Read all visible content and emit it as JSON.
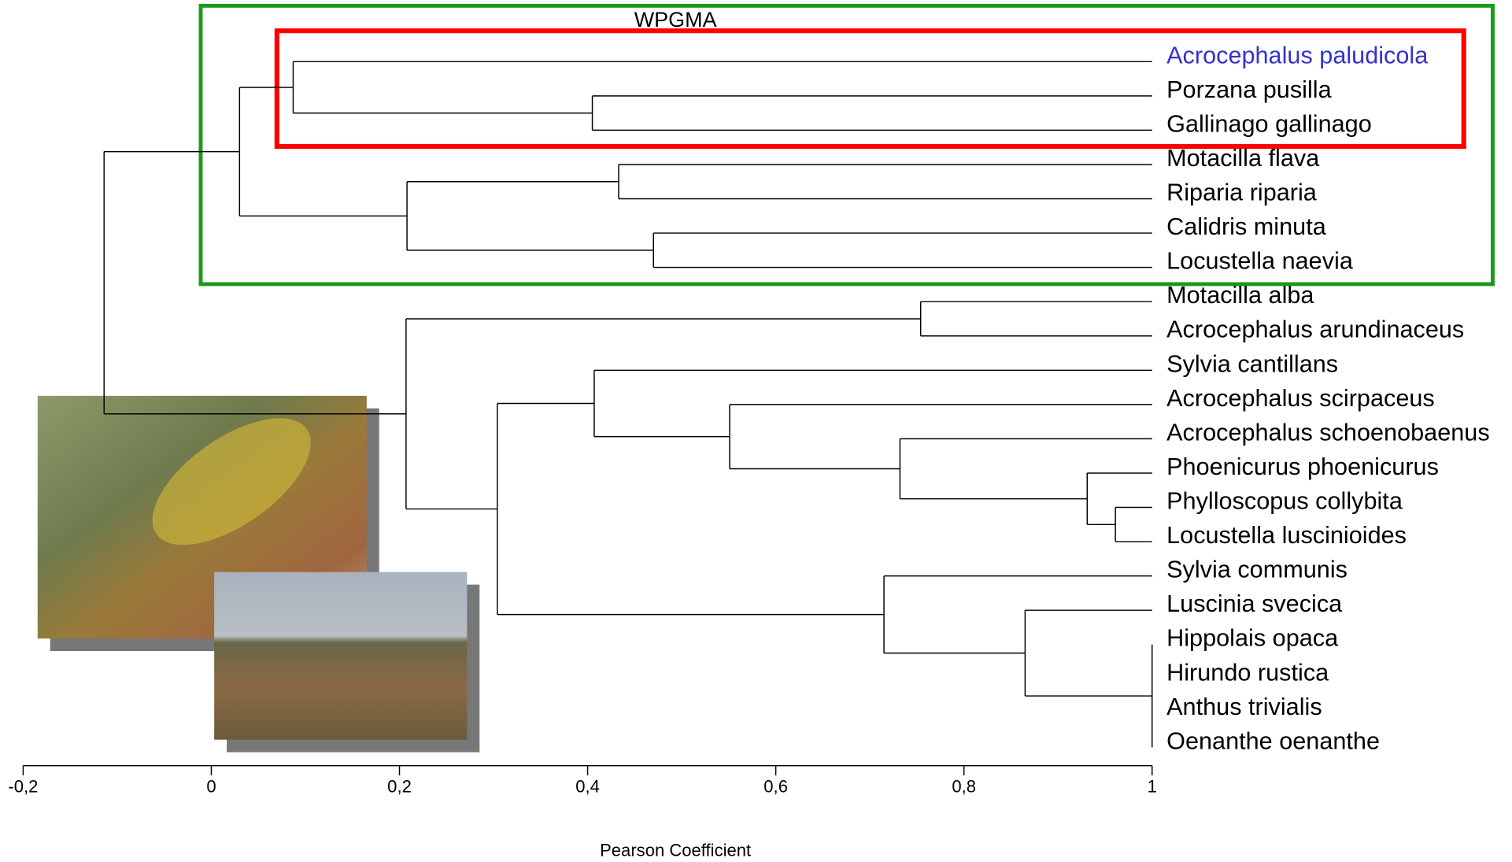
{
  "chart_data": {
    "type": "dendrogram",
    "title": "WPGMA",
    "xlabel": "Pearson Coefficient",
    "xlim": [
      -0.2,
      1
    ],
    "xticks": [
      {
        "value": -0.2,
        "label": "-0,2"
      },
      0,
      {
        "value": 0.2,
        "label": "0,2"
      },
      {
        "value": 0.4,
        "label": "0,4"
      },
      {
        "value": 0.6,
        "label": "0,6"
      },
      {
        "value": 0.8,
        "label": "0,8"
      },
      1
    ],
    "tree": {
      "height": -0.114,
      "children": [
        {
          "height": 0.03,
          "children": [
            {
              "height": 0.087,
              "children": [
                {
                  "label": "Acrocephalus paludicola",
                  "color": "#3333cc"
                },
                {
                  "height": 0.405,
                  "children": [
                    {
                      "label": "Porzana pusilla"
                    },
                    {
                      "label": "Gallinago gallinago"
                    }
                  ]
                }
              ]
            },
            {
              "height": 0.208,
              "children": [
                {
                  "height": 0.433,
                  "children": [
                    {
                      "label": "Motacilla flava"
                    },
                    {
                      "label": "Riparia riparia"
                    }
                  ]
                },
                {
                  "height": 0.47,
                  "children": [
                    {
                      "label": "Calidris minuta"
                    },
                    {
                      "label": "Locustella naevia"
                    }
                  ]
                }
              ]
            }
          ]
        },
        {
          "height": 0.207,
          "children": [
            {
              "height": 0.754,
              "children": [
                {
                  "label": "Motacilla alba"
                },
                {
                  "label": "Acrocephalus arundinaceus"
                }
              ]
            },
            {
              "height": 0.304,
              "children": [
                {
                  "height": 0.407,
                  "children": [
                    {
                      "label": "Sylvia cantillans"
                    },
                    {
                      "height": 0.551,
                      "children": [
                        {
                          "label": "Acrocephalus scirpaceus"
                        },
                        {
                          "height": 0.732,
                          "children": [
                            {
                              "label": "Acrocephalus schoenobaenus"
                            },
                            {
                              "height": 0.931,
                              "children": [
                                {
                                  "label": "Phoenicurus phoenicurus"
                                },
                                {
                                  "height": 0.961,
                                  "children": [
                                    {
                                      "label": "Phylloscopus collybita"
                                    },
                                    {
                                      "label": "Locustella luscinioides"
                                    }
                                  ]
                                }
                              ]
                            }
                          ]
                        }
                      ]
                    }
                  ]
                },
                {
                  "height": 0.715,
                  "children": [
                    {
                      "label": "Sylvia communis"
                    },
                    {
                      "height": 0.865,
                      "children": [
                        {
                          "label": "Luscinia svecica"
                        },
                        {
                          "height": 1.0,
                          "children": [
                            {
                              "label": "Hippolais opaca"
                            },
                            {
                              "label": "Hirundo rustica"
                            },
                            {
                              "label": "Anthus trivialis"
                            },
                            {
                              "label": "Oenanthe oenanthe"
                            }
                          ]
                        }
                      ]
                    }
                  ]
                }
              ]
            }
          ]
        }
      ]
    }
  }
}
